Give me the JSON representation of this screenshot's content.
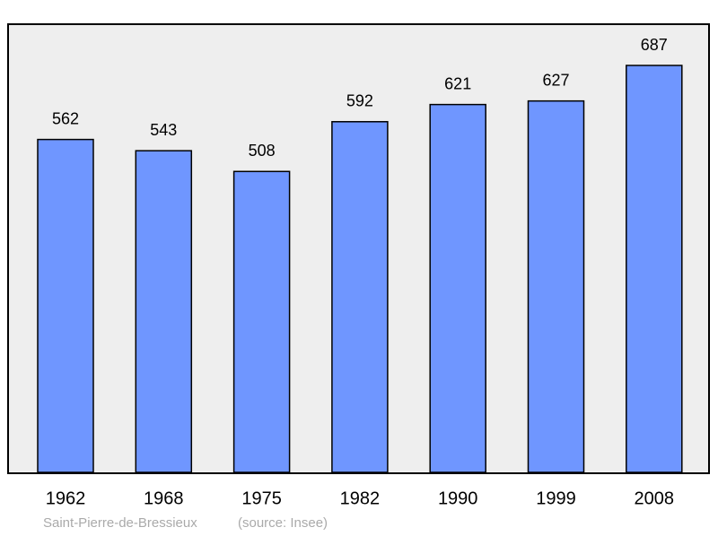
{
  "chart_data": {
    "type": "bar",
    "categories": [
      "1962",
      "1968",
      "1975",
      "1982",
      "1990",
      "1999",
      "2008"
    ],
    "values": [
      562,
      543,
      508,
      592,
      621,
      627,
      687
    ],
    "color": "#6f96ff",
    "caption": "Saint-Pierre-de-Bressieux",
    "source": "(source: Insee)"
  }
}
